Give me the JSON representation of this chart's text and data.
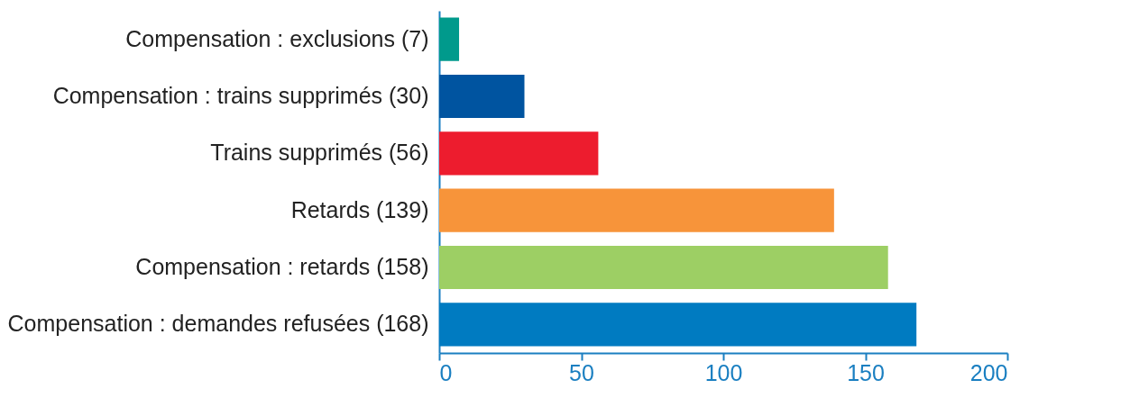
{
  "chart_data": {
    "type": "bar",
    "orientation": "horizontal",
    "categories": [
      "Compensation : exclusions (7)",
      "Compensation : trains supprimés (30)",
      "Trains supprimés (56)",
      "Retards (139)",
      "Compensation : retards (158)",
      "Compensation : demandes refusées (168)"
    ],
    "values": [
      7,
      30,
      56,
      139,
      158,
      168
    ],
    "colors": [
      "#009a8c",
      "#0054a0",
      "#ed1c2e",
      "#f7943a",
      "#9dcf64",
      "#007bc1"
    ],
    "xlim": [
      0,
      200
    ],
    "xticks": [
      0,
      50,
      100,
      150,
      200
    ],
    "grid": false,
    "legend": false
  }
}
